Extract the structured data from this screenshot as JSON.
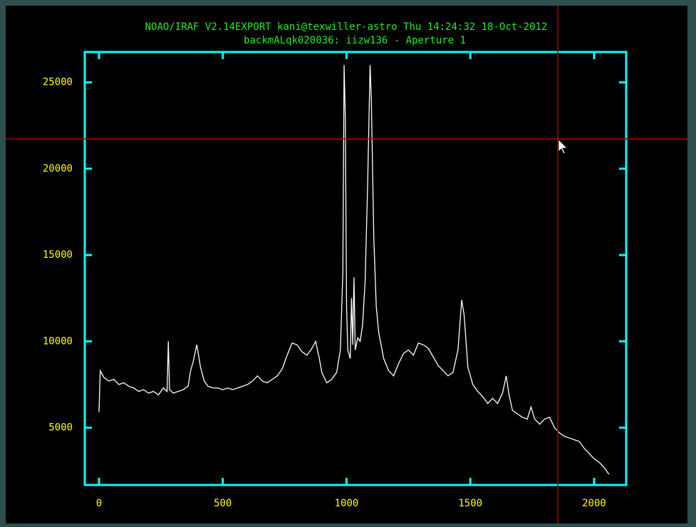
{
  "chart_data": {
    "type": "line",
    "title": "NOAO/IRAF V2.14EXPORT kani@texwiller-astro Thu 14:24:32 18-Oct-2012",
    "subtitle": "backmALqk020036: iizw136 - Aperture 1",
    "title_color": "#22ee22",
    "axis_color": "#00ffff",
    "tick_label_color": "#ffff00",
    "color": "#ffffff",
    "xlim": [
      -57.5,
      2129.5
    ],
    "ylim": [
      1680,
      26760
    ],
    "xticks": [
      0,
      500,
      1000,
      1500,
      2000
    ],
    "yticks": [
      5000,
      10000,
      15000,
      20000,
      25000
    ],
    "x": [
      0,
      5,
      20,
      40,
      60,
      80,
      100,
      120,
      140,
      160,
      180,
      200,
      220,
      240,
      260,
      275,
      280,
      285,
      300,
      320,
      340,
      360,
      370,
      380,
      395,
      410,
      425,
      440,
      460,
      480,
      500,
      520,
      540,
      560,
      580,
      600,
      620,
      640,
      660,
      680,
      700,
      720,
      740,
      760,
      780,
      800,
      820,
      840,
      860,
      875,
      890,
      900,
      920,
      940,
      960,
      975,
      985,
      990,
      995,
      1000,
      1005,
      1015,
      1020,
      1025,
      1030,
      1035,
      1045,
      1055,
      1065,
      1075,
      1085,
      1095,
      1100,
      1110,
      1120,
      1130,
      1150,
      1170,
      1190,
      1210,
      1230,
      1250,
      1270,
      1290,
      1310,
      1330,
      1350,
      1370,
      1390,
      1410,
      1430,
      1450,
      1465,
      1475,
      1490,
      1510,
      1530,
      1550,
      1570,
      1590,
      1610,
      1630,
      1645,
      1655,
      1670,
      1690,
      1710,
      1730,
      1745,
      1760,
      1780,
      1800,
      1820,
      1840,
      1860,
      1880,
      1900,
      1920,
      1940,
      1960,
      1980,
      2000,
      2020,
      2040,
      2060
    ],
    "values": [
      5900,
      8300,
      7900,
      7700,
      7800,
      7500,
      7600,
      7400,
      7300,
      7100,
      7200,
      7000,
      7100,
      6900,
      7300,
      7100,
      10000,
      7200,
      7000,
      7100,
      7200,
      7400,
      8300,
      8800,
      9800,
      8500,
      7700,
      7400,
      7300,
      7300,
      7200,
      7300,
      7200,
      7300,
      7400,
      7500,
      7700,
      8000,
      7700,
      7600,
      7800,
      8000,
      8400,
      9200,
      9900,
      9800,
      9400,
      9200,
      9600,
      10000,
      9000,
      8200,
      7600,
      7800,
      8200,
      9500,
      14000,
      26000,
      23000,
      12000,
      9500,
      9000,
      12500,
      9800,
      13700,
      9500,
      10200,
      10000,
      11000,
      13500,
      19000,
      26000,
      24000,
      16000,
      12000,
      10500,
      9000,
      8300,
      8000,
      8700,
      9300,
      9500,
      9200,
      9900,
      9800,
      9600,
      9100,
      8600,
      8300,
      8000,
      8200,
      9500,
      12400,
      11500,
      8500,
      7500,
      7100,
      6800,
      6400,
      6700,
      6400,
      7000,
      8000,
      7000,
      6000,
      5800,
      5600,
      5500,
      6200,
      5500,
      5200,
      5500,
      5600,
      5000,
      4700,
      4500,
      4400,
      4300,
      4200,
      3800,
      3500,
      3200,
      3000,
      2700,
      2300
    ]
  }
}
